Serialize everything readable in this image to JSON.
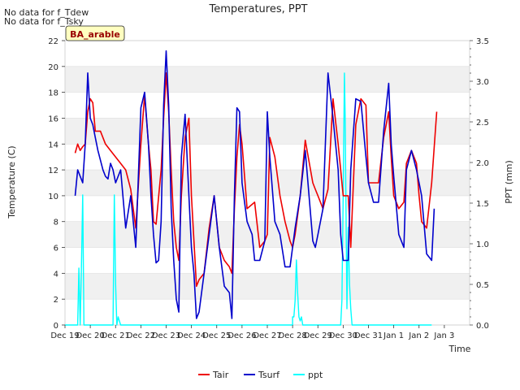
{
  "notes": [
    "No data for f_Tdew",
    "No data for f_Tsky"
  ],
  "site_label": "BA_arable",
  "chart_data": {
    "type": "line",
    "title": "Temperatures, PPT",
    "xlabel": "Time",
    "ylabel": "Temperature (C)",
    "y2label": "PPT (mm)",
    "xlim": [
      0,
      16
    ],
    "ylim": [
      0,
      22
    ],
    "y2lim": [
      0,
      3.5
    ],
    "grid": "horizontal bands",
    "legend_position": "bottom-center",
    "x_ticks": [
      {
        "x": 0,
        "label": "Dec 19"
      },
      {
        "x": 1,
        "label": "Dec 20"
      },
      {
        "x": 2,
        "label": "Dec 21"
      },
      {
        "x": 3,
        "label": "Dec 22"
      },
      {
        "x": 4,
        "label": "Dec 23"
      },
      {
        "x": 5,
        "label": "Dec 24"
      },
      {
        "x": 6,
        "label": "Dec 25"
      },
      {
        "x": 7,
        "label": "Dec 26"
      },
      {
        "x": 8,
        "label": "Dec 27"
      },
      {
        "x": 9,
        "label": "Dec 28"
      },
      {
        "x": 10,
        "label": "Dec 29"
      },
      {
        "x": 11,
        "label": "Dec 30"
      },
      {
        "x": 12,
        "label": "Dec 31"
      },
      {
        "x": 13,
        "label": "Jan 1"
      },
      {
        "x": 14,
        "label": "Jan 2"
      },
      {
        "x": 15,
        "label": "Jan 3"
      }
    ],
    "y_ticks": [
      0,
      2,
      4,
      6,
      8,
      10,
      12,
      14,
      16,
      18,
      20,
      22
    ],
    "y2_ticks": [
      "0.0",
      "0.5",
      "1.0",
      "1.5",
      "2.0",
      "2.5",
      "3.0",
      "3.5"
    ],
    "series": [
      {
        "name": "Tair",
        "color": "#ee0000",
        "axis": "left",
        "x": [
          0.4,
          0.5,
          0.6,
          0.7,
          0.8,
          0.9,
          1.0,
          1.1,
          1.2,
          1.4,
          1.6,
          1.8,
          2.0,
          2.2,
          2.4,
          2.6,
          2.8,
          3.0,
          3.15,
          3.3,
          3.4,
          3.5,
          3.6,
          3.8,
          3.9,
          4.0,
          4.1,
          4.2,
          4.3,
          4.4,
          4.5,
          4.6,
          4.75,
          4.9,
          5.0,
          5.1,
          5.2,
          5.3,
          5.5,
          5.7,
          5.9,
          6.1,
          6.3,
          6.5,
          6.6,
          6.7,
          6.8,
          6.9,
          7.0,
          7.2,
          7.5,
          7.7,
          7.9,
          8.0,
          8.1,
          8.3,
          8.5,
          8.7,
          8.9,
          9.0,
          9.1,
          9.3,
          9.5,
          9.8,
          9.9,
          10.0,
          10.2,
          10.4,
          10.6,
          10.8,
          10.9,
          11.0,
          11.1,
          11.2,
          11.3,
          11.5,
          11.7,
          11.9,
          12.0,
          12.2,
          12.4,
          12.6,
          12.8,
          12.9,
          13.0,
          13.2,
          13.4,
          13.5,
          13.7,
          13.9,
          14.0,
          14.1,
          14.3,
          14.5,
          14.7
        ],
        "values": [
          13.3,
          14.0,
          13.5,
          13.8,
          14.0,
          16.5,
          17.5,
          17.2,
          15.0,
          15.0,
          14.0,
          13.5,
          13.0,
          12.5,
          12.0,
          10.5,
          7.5,
          14.0,
          17.8,
          14.0,
          12.0,
          8.0,
          7.8,
          12.0,
          16.0,
          19.5,
          16.5,
          12.0,
          8.0,
          6.0,
          5.0,
          10.0,
          14.5,
          16.0,
          10.0,
          6.5,
          3.0,
          3.5,
          4.0,
          7.5,
          10.0,
          6.0,
          5.0,
          4.5,
          4.0,
          9.0,
          13.0,
          15.5,
          14.0,
          9.0,
          9.5,
          6.0,
          6.5,
          7.0,
          14.5,
          13.0,
          10.0,
          8.0,
          6.5,
          6.0,
          7.0,
          10.0,
          14.3,
          11.0,
          10.5,
          10.0,
          9.0,
          10.5,
          17.5,
          14.0,
          12.0,
          10.0,
          10.0,
          10.0,
          6.0,
          15.5,
          17.5,
          17.0,
          11.0,
          11.0,
          11.0,
          14.5,
          16.5,
          13.0,
          10.0,
          9.0,
          9.5,
          12.5,
          13.5,
          12.5,
          10.0,
          8.0,
          7.5,
          11.0,
          16.5
        ]
      },
      {
        "name": "Tsurf",
        "color": "#0000cc",
        "axis": "left",
        "x": [
          0.4,
          0.5,
          0.6,
          0.7,
          0.8,
          0.9,
          1.0,
          1.1,
          1.2,
          1.3,
          1.5,
          1.6,
          1.7,
          1.8,
          1.9,
          2.0,
          2.2,
          2.4,
          2.6,
          2.8,
          3.0,
          3.15,
          3.3,
          3.4,
          3.5,
          3.6,
          3.7,
          3.8,
          3.9,
          4.0,
          4.1,
          4.2,
          4.3,
          4.4,
          4.5,
          4.6,
          4.75,
          4.9,
          5.0,
          5.1,
          5.2,
          5.3,
          5.5,
          5.7,
          5.9,
          6.1,
          6.3,
          6.5,
          6.6,
          6.7,
          6.8,
          6.9,
          7.0,
          7.2,
          7.4,
          7.5,
          7.7,
          7.9,
          8.0,
          8.1,
          8.3,
          8.5,
          8.7,
          8.9,
          9.0,
          9.1,
          9.3,
          9.5,
          9.8,
          9.9,
          10.0,
          10.2,
          10.4,
          10.6,
          10.8,
          10.9,
          11.0,
          11.1,
          11.2,
          11.3,
          11.5,
          11.7,
          11.9,
          12.0,
          12.2,
          12.4,
          12.6,
          12.8,
          12.9,
          13.0,
          13.2,
          13.4,
          13.5,
          13.7,
          13.9,
          14.0,
          14.1,
          14.3,
          14.5,
          14.6
        ],
        "values": [
          10.0,
          12.0,
          11.5,
          11.0,
          14.0,
          19.5,
          16.0,
          15.5,
          14.5,
          13.5,
          12.0,
          11.5,
          11.3,
          12.5,
          12.0,
          11.0,
          12.0,
          7.5,
          10.0,
          6.0,
          16.8,
          18.0,
          14.0,
          10.0,
          7.0,
          4.8,
          5.0,
          8.0,
          17.0,
          21.2,
          17.0,
          9.0,
          5.0,
          2.0,
          1.0,
          13.0,
          16.3,
          10.0,
          6.0,
          4.0,
          0.5,
          1.0,
          4.0,
          7.0,
          10.0,
          6.0,
          3.0,
          2.5,
          0.5,
          10.0,
          16.8,
          16.5,
          11.0,
          8.0,
          7.0,
          5.0,
          5.0,
          6.5,
          16.5,
          13.0,
          8.0,
          7.0,
          4.5,
          4.5,
          6.0,
          7.5,
          10.0,
          13.5,
          6.5,
          6.0,
          7.0,
          9.0,
          19.5,
          16.0,
          12.0,
          7.0,
          5.0,
          5.0,
          5.0,
          12.0,
          17.5,
          17.3,
          13.0,
          11.0,
          9.5,
          9.5,
          15.0,
          18.7,
          14.0,
          11.5,
          7.0,
          6.0,
          12.0,
          13.5,
          12.0,
          11.0,
          10.0,
          5.5,
          5.0,
          9.0
        ]
      },
      {
        "name": "ppt",
        "color": "#00ffff",
        "axis": "right",
        "x": [
          0.0,
          0.45,
          0.5,
          0.55,
          0.6,
          0.65,
          0.7,
          0.75,
          0.8,
          1.0,
          1.5,
          1.9,
          1.95,
          2.0,
          2.05,
          2.1,
          2.15,
          2.2,
          2.3,
          3.0,
          5.0,
          7.0,
          9.0,
          9.0,
          9.05,
          9.1,
          9.15,
          9.2,
          9.25,
          9.3,
          9.35,
          9.4,
          9.6,
          10.5,
          10.9,
          10.95,
          11.0,
          11.05,
          11.08,
          11.1,
          11.15,
          11.2,
          11.25,
          11.3,
          11.35,
          11.4,
          11.5,
          12.0,
          13.0,
          14.5
        ],
        "values": [
          0,
          0,
          0,
          0.7,
          0,
          0.7,
          1.6,
          0,
          0,
          0,
          0,
          0,
          1.6,
          0.5,
          0,
          0.1,
          0.05,
          0,
          0,
          0,
          0,
          0,
          0,
          0.1,
          0.1,
          0.3,
          0.8,
          0.4,
          0.1,
          0.05,
          0.1,
          0,
          0,
          0,
          0,
          0.3,
          1.6,
          3.1,
          2.5,
          1.8,
          0.2,
          1.2,
          0.5,
          0.2,
          0,
          0,
          0,
          0,
          0,
          0
        ]
      }
    ]
  }
}
